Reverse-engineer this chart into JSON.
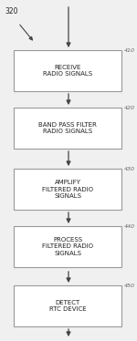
{
  "bg_color": "#f0f0f0",
  "box_color": "#ffffff",
  "box_edge_color": "#999999",
  "arrow_color": "#444444",
  "text_color": "#222222",
  "label_color": "#666666",
  "steps": [
    {
      "label": "RECEIVE\nRADIO SIGNALS",
      "ref": "410"
    },
    {
      "label": "BAND PASS FILTER\nRADIO SIGNALS",
      "ref": "420"
    },
    {
      "label": "AMPLIFY\nFILTERED RADIO\nSIGNALS",
      "ref": "430"
    },
    {
      "label": "PROCESS\nFILTERED RADIO\nSIGNALS",
      "ref": "440"
    },
    {
      "label": "DETECT\nRTC DEVICE",
      "ref": "450"
    }
  ],
  "top_label": "320",
  "fig_width": 1.5,
  "fig_height": 3.74,
  "dpi": 100
}
